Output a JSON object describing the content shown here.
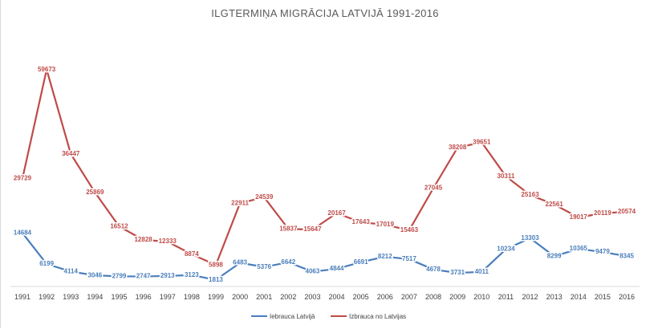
{
  "chart_data": {
    "type": "line",
    "title": "ILGTERMIŅA MIGRĀCIJA LATVIJĀ 1991-2016",
    "xlabel": "",
    "ylabel": "",
    "categories": [
      "1991",
      "1992",
      "1993",
      "1994",
      "1995",
      "1996",
      "1997",
      "1998",
      "1999",
      "2000",
      "2001",
      "2002",
      "2003",
      "2004",
      "2005",
      "2006",
      "2007",
      "2008",
      "2009",
      "2010",
      "2011",
      "2012",
      "2013",
      "2014",
      "2015",
      "2016"
    ],
    "series": [
      {
        "name": "Iebrauca Latvijā",
        "color": "#4a7ebb",
        "values": [
          14684,
          6199,
          4114,
          3046,
          2799,
          2747,
          2913,
          3123,
          1813,
          6483,
          5376,
          6642,
          4063,
          4844,
          6691,
          8212,
          7517,
          4678,
          3731,
          4011,
          10234,
          13303,
          8299,
          10365,
          9479,
          8345
        ]
      },
      {
        "name": "Izbrauca no Latvijas",
        "color": "#be4b48",
        "values": [
          29729,
          59673,
          36447,
          25869,
          16512,
          12828,
          12333,
          8874,
          5898,
          22911,
          24539,
          15837,
          15647,
          20167,
          17643,
          17019,
          15463,
          27045,
          38208,
          39651,
          30311,
          25163,
          22561,
          19017,
          20119,
          20574
        ]
      }
    ],
    "ylim": [
      0,
      60000
    ],
    "grid": false,
    "legend": "bottom"
  }
}
